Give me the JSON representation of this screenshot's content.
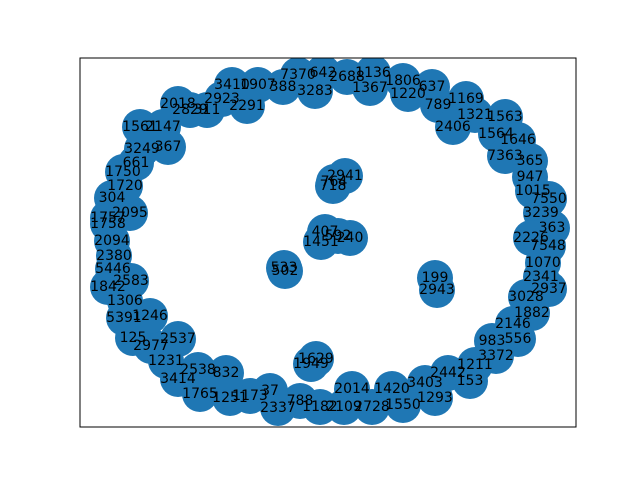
{
  "nodes": [
    "3410",
    "1907",
    "388",
    "7370",
    "642",
    "2688",
    "1136",
    "3283",
    "1367",
    "1806",
    "637",
    "1220",
    "789",
    "1169",
    "1321",
    "2406",
    "1563",
    "1564",
    "1646",
    "7363",
    "365",
    "947",
    "1015",
    "7550",
    "3239",
    "363",
    "2226",
    "7548",
    "1070",
    "2341",
    "2937",
    "3028",
    "1882",
    "2146",
    "983",
    "556",
    "3372",
    "1211",
    "2442",
    "153",
    "3403",
    "1293",
    "1420",
    "1550",
    "2014",
    "2728",
    "2109",
    "1182",
    "788",
    "2337",
    "37",
    "1173",
    "1251",
    "1765",
    "2538",
    "832",
    "3414",
    "1231",
    "2977",
    "125",
    "2537",
    "5391",
    "1246",
    "1306",
    "1842",
    "2583",
    "5446",
    "2380",
    "2094",
    "1757",
    "1758",
    "2095",
    "304",
    "1720",
    "1750",
    "661",
    "3249",
    "367",
    "1561",
    "2147",
    "2018",
    "2829",
    "311",
    "2923",
    "2291",
    "2941",
    "764",
    "718",
    "407",
    "1451",
    "592",
    "240",
    "533",
    "502",
    "199",
    "2943",
    "1629",
    "1949"
  ]
}
